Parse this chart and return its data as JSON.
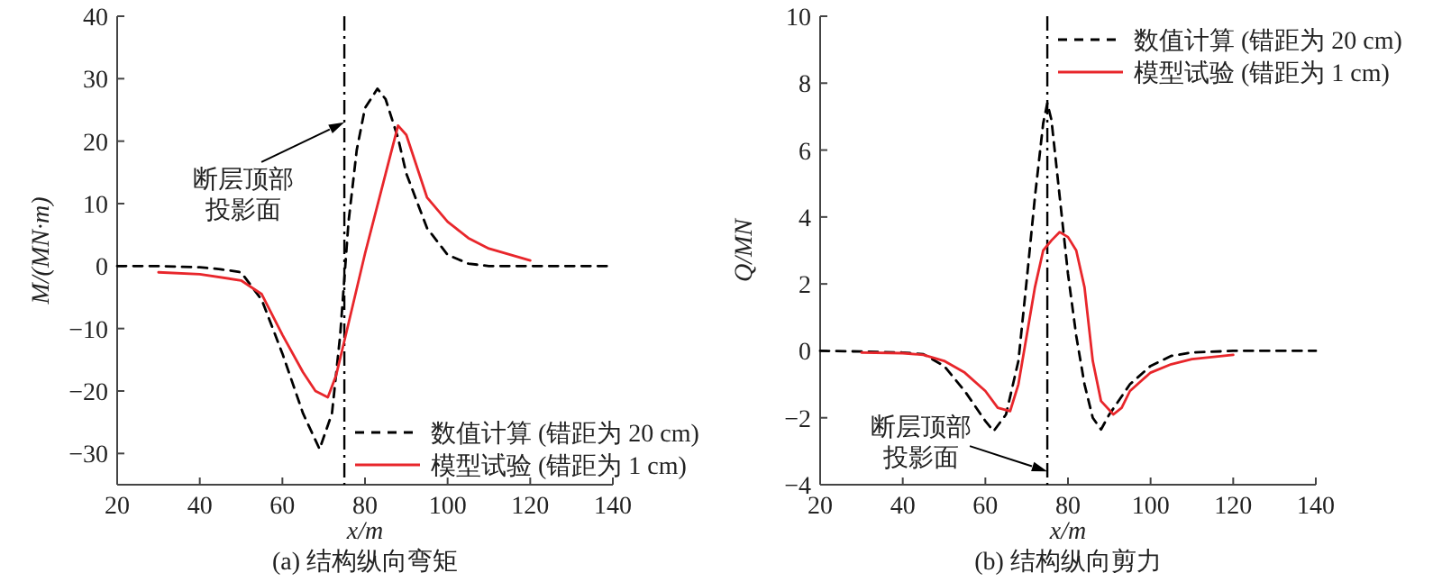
{
  "chart_data": [
    {
      "type": "line",
      "title": "(a) 结构纵向弯矩",
      "xlabel": "x/m",
      "ylabel": "M/(MN·m)",
      "xlim": [
        20,
        140
      ],
      "xticks": [
        20,
        40,
        60,
        80,
        100,
        120,
        140
      ],
      "ylim": [
        -35,
        40
      ],
      "yticks": [
        -30,
        -20,
        -10,
        0,
        10,
        20,
        30,
        40
      ],
      "legend": "bottom right",
      "grid": false,
      "series": [
        {
          "name": "数值计算 (错距为 20 cm)",
          "color": "#000000",
          "line_style": "dashed",
          "x": [
            20,
            30,
            40,
            45,
            50,
            55,
            60,
            65,
            69,
            72,
            74,
            76,
            78,
            80,
            83,
            85,
            88,
            90,
            95,
            100,
            105,
            110,
            120,
            140
          ],
          "values": [
            0,
            0,
            -0.2,
            -0.5,
            -1,
            -5.4,
            -14,
            -23.6,
            -29.3,
            -23.6,
            -11,
            7,
            18.6,
            25.3,
            28.4,
            26.7,
            20.5,
            14.8,
            6.1,
            1.8,
            0.4,
            0,
            0,
            0
          ]
        },
        {
          "name": "模型试验 (错距为 1 cm)",
          "color": "#e8262b",
          "line_style": "solid",
          "x": [
            30,
            40,
            50,
            55,
            60,
            65,
            68,
            71,
            73,
            75,
            80,
            85,
            88,
            90,
            95,
            100,
            105,
            110,
            120
          ],
          "values": [
            -1,
            -1.3,
            -2.3,
            -4.5,
            -11,
            -17,
            -20,
            -21,
            -17.5,
            -12,
            2,
            14.8,
            22.5,
            21,
            11,
            7.1,
            4.5,
            2.8,
            0.9
          ]
        }
      ],
      "ref_lines": [
        {
          "axis": "x",
          "value": 75,
          "color": "#000000",
          "line_style": "dashdot"
        }
      ],
      "annotations": [
        {
          "text": "断层顶部投影面",
          "x": 75,
          "y": 23
        }
      ]
    },
    {
      "type": "line",
      "title": "(b) 结构纵向剪力",
      "xlabel": "x/m",
      "ylabel": "Q/MN",
      "xlim": [
        20,
        140
      ],
      "xticks": [
        20,
        40,
        60,
        80,
        100,
        120,
        140
      ],
      "ylim": [
        -4,
        10
      ],
      "yticks": [
        -4,
        -2,
        0,
        2,
        4,
        6,
        8,
        10
      ],
      "legend": "top right",
      "grid": false,
      "series": [
        {
          "name": "数值计算 (错距为 20 cm)",
          "color": "#000000",
          "line_style": "dashed",
          "x": [
            20,
            30,
            40,
            45,
            50,
            55,
            60,
            62,
            65,
            68,
            70,
            72,
            74,
            75,
            76,
            78,
            80,
            82,
            84,
            86,
            88,
            90,
            95,
            100,
            105,
            110,
            120,
            140
          ],
          "values": [
            0,
            -0.02,
            -0.05,
            -0.1,
            -0.45,
            -1.2,
            -2.1,
            -2.4,
            -1.9,
            -0.3,
            2.1,
            4.6,
            6.8,
            7.4,
            6.9,
            4.6,
            2.3,
            0.45,
            -1,
            -2,
            -2.35,
            -1.9,
            -1,
            -0.45,
            -0.15,
            -0.05,
            0,
            0
          ]
        },
        {
          "name": "模型试验 (错距为 1 cm)",
          "color": "#e8262b",
          "line_style": "solid",
          "x": [
            30,
            40,
            45,
            50,
            55,
            60,
            63,
            66,
            68,
            70,
            72,
            74,
            76,
            78,
            80,
            82,
            84,
            86,
            88,
            91,
            93,
            95,
            100,
            105,
            110,
            120
          ],
          "values": [
            -0.05,
            -0.07,
            -0.12,
            -0.3,
            -0.65,
            -1.2,
            -1.7,
            -1.8,
            -1,
            0.45,
            1.9,
            3,
            3.3,
            3.55,
            3.4,
            3,
            1.9,
            -0.3,
            -1.5,
            -1.9,
            -1.7,
            -1.2,
            -0.65,
            -0.4,
            -0.25,
            -0.12
          ]
        }
      ],
      "ref_lines": [
        {
          "axis": "x",
          "value": 75,
          "color": "#000000",
          "line_style": "dashdot"
        }
      ],
      "annotations": [
        {
          "text": "断层顶部投影面",
          "x": 75,
          "y": -3.6
        }
      ]
    }
  ]
}
